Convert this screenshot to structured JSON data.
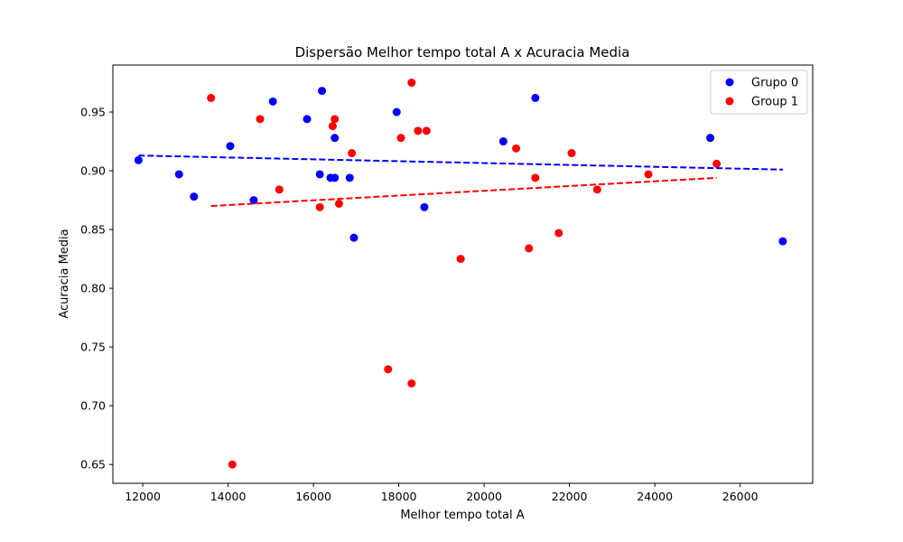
{
  "chart_data": {
    "type": "scatter",
    "title": "Dispersão Melhor tempo total A x Acuracia Media",
    "xlabel": "Melhor tempo total A",
    "ylabel": "Acuracia Media",
    "xlim": [
      11300,
      27700
    ],
    "ylim": [
      0.634,
      0.99
    ],
    "xticks": [
      12000,
      14000,
      16000,
      18000,
      20000,
      22000,
      24000,
      26000
    ],
    "yticks": [
      0.65,
      0.7,
      0.75,
      0.8,
      0.85,
      0.9,
      0.95
    ],
    "xtick_labels": [
      "12000",
      "14000",
      "16000",
      "18000",
      "20000",
      "22000",
      "24000",
      "26000"
    ],
    "ytick_labels": [
      "0.65",
      "0.70",
      "0.75",
      "0.80",
      "0.85",
      "0.90",
      "0.95"
    ],
    "legend_position": "top-right",
    "series": [
      {
        "name": "Grupo 0",
        "color": "#0000ff",
        "points": [
          [
            11900,
            0.909
          ],
          [
            12850,
            0.897
          ],
          [
            13200,
            0.878
          ],
          [
            14050,
            0.921
          ],
          [
            14600,
            0.875
          ],
          [
            15050,
            0.959
          ],
          [
            15850,
            0.944
          ],
          [
            16200,
            0.968
          ],
          [
            16150,
            0.897
          ],
          [
            16400,
            0.894
          ],
          [
            16500,
            0.894
          ],
          [
            16500,
            0.928
          ],
          [
            16850,
            0.894
          ],
          [
            16950,
            0.843
          ],
          [
            17950,
            0.95
          ],
          [
            18600,
            0.869
          ],
          [
            20450,
            0.925
          ],
          [
            21200,
            0.962
          ],
          [
            25300,
            0.928
          ],
          [
            27000,
            0.84
          ]
        ],
        "trend": {
          "x": [
            11900,
            27000
          ],
          "y": [
            0.913,
            0.901
          ]
        }
      },
      {
        "name": "Group 1",
        "color": "#ff0000",
        "points": [
          [
            13600,
            0.962
          ],
          [
            14100,
            0.65
          ],
          [
            14750,
            0.944
          ],
          [
            15200,
            0.884
          ],
          [
            16150,
            0.869
          ],
          [
            16450,
            0.938
          ],
          [
            16500,
            0.944
          ],
          [
            16600,
            0.872
          ],
          [
            16900,
            0.915
          ],
          [
            17750,
            0.731
          ],
          [
            18050,
            0.928
          ],
          [
            18300,
            0.975
          ],
          [
            18300,
            0.719
          ],
          [
            18450,
            0.934
          ],
          [
            18650,
            0.934
          ],
          [
            19450,
            0.825
          ],
          [
            20750,
            0.919
          ],
          [
            21050,
            0.834
          ],
          [
            21200,
            0.894
          ],
          [
            21750,
            0.847
          ],
          [
            22050,
            0.915
          ],
          [
            22650,
            0.884
          ],
          [
            23850,
            0.897
          ],
          [
            25450,
            0.906
          ]
        ],
        "trend": {
          "x": [
            13600,
            25450
          ],
          "y": [
            0.87,
            0.894
          ]
        }
      }
    ]
  }
}
